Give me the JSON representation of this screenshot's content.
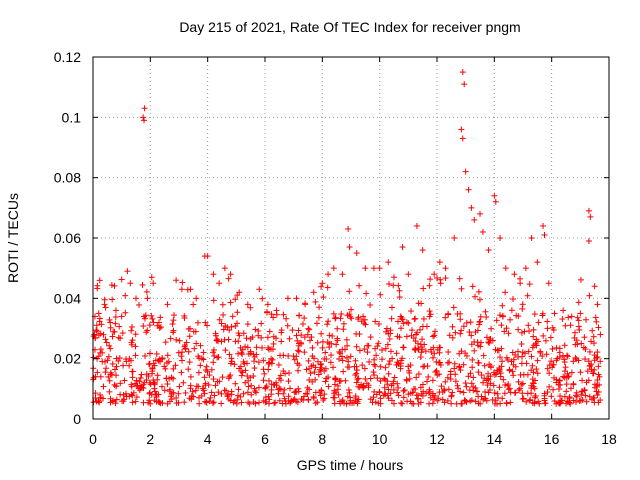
{
  "chart_data": {
    "type": "scatter",
    "title": "Day 215 of 2021, Rate Of TEC Index for receiver pngm",
    "xlabel": "GPS time / hours",
    "ylabel": "ROTI / TECUs",
    "xlim": [
      0,
      18
    ],
    "ylim": [
      0,
      0.12
    ],
    "xticks": [
      0,
      2,
      4,
      6,
      8,
      10,
      12,
      14,
      16,
      18
    ],
    "xtick_labels": [
      "0",
      "2",
      "4",
      "6",
      "8",
      "10",
      "12",
      "14",
      "16",
      "18"
    ],
    "yticks": [
      0,
      0.02,
      0.04,
      0.06,
      0.08,
      0.1,
      0.12
    ],
    "ytick_labels": [
      "0",
      "0.02",
      "0.04",
      "0.06",
      "0.08",
      "0.1",
      "0.12"
    ],
    "grid": true,
    "marker": "+",
    "color": "#ff0000",
    "series": [
      {
        "name": "ROTI",
        "x_range": [
          0,
          17.7
        ],
        "typical_band": [
          0.005,
          0.035
        ],
        "points": [
          [
            0.05,
            0.028
          ],
          [
            0.2,
            0.035
          ],
          [
            0.4,
            0.038
          ],
          [
            0.6,
            0.032
          ],
          [
            0.8,
            0.036
          ],
          [
            1.0,
            0.034
          ],
          [
            1.2,
            0.049
          ],
          [
            1.3,
            0.045
          ],
          [
            1.5,
            0.04
          ],
          [
            1.75,
            0.1
          ],
          [
            1.8,
            0.103
          ],
          [
            1.78,
            0.099
          ],
          [
            1.9,
            0.04
          ],
          [
            2.05,
            0.047
          ],
          [
            2.1,
            0.045
          ],
          [
            2.3,
            0.032
          ],
          [
            2.6,
            0.038
          ],
          [
            2.9,
            0.046
          ],
          [
            3.1,
            0.043
          ],
          [
            3.4,
            0.043
          ],
          [
            3.6,
            0.04
          ],
          [
            3.9,
            0.054
          ],
          [
            4.0,
            0.054
          ],
          [
            4.2,
            0.048
          ],
          [
            4.4,
            0.045
          ],
          [
            4.6,
            0.05
          ],
          [
            4.8,
            0.048
          ],
          [
            5.1,
            0.042
          ],
          [
            5.4,
            0.038
          ],
          [
            5.8,
            0.043
          ],
          [
            6.1,
            0.038
          ],
          [
            6.4,
            0.036
          ],
          [
            6.8,
            0.04
          ],
          [
            7.1,
            0.04
          ],
          [
            7.4,
            0.038
          ],
          [
            7.7,
            0.042
          ],
          [
            8.0,
            0.045
          ],
          [
            8.2,
            0.048
          ],
          [
            8.4,
            0.05
          ],
          [
            8.7,
            0.048
          ],
          [
            8.9,
            0.063
          ],
          [
            8.95,
            0.057
          ],
          [
            9.2,
            0.055
          ],
          [
            9.5,
            0.05
          ],
          [
            9.8,
            0.05
          ],
          [
            10.0,
            0.05
          ],
          [
            10.3,
            0.052
          ],
          [
            10.5,
            0.047
          ],
          [
            10.8,
            0.057
          ],
          [
            11.0,
            0.048
          ],
          [
            11.3,
            0.064
          ],
          [
            11.5,
            0.056
          ],
          [
            11.9,
            0.048
          ],
          [
            12.1,
            0.052
          ],
          [
            12.3,
            0.05
          ],
          [
            12.6,
            0.06
          ],
          [
            12.9,
            0.115
          ],
          [
            12.95,
            0.111
          ],
          [
            12.85,
            0.096
          ],
          [
            12.9,
            0.093
          ],
          [
            13.0,
            0.082
          ],
          [
            13.1,
            0.076
          ],
          [
            13.2,
            0.07
          ],
          [
            13.3,
            0.066
          ],
          [
            13.5,
            0.068
          ],
          [
            13.6,
            0.062
          ],
          [
            13.8,
            0.056
          ],
          [
            14.0,
            0.074
          ],
          [
            14.05,
            0.072
          ],
          [
            14.2,
            0.06
          ],
          [
            14.4,
            0.05
          ],
          [
            14.7,
            0.048
          ],
          [
            14.9,
            0.045
          ],
          [
            15.1,
            0.05
          ],
          [
            15.3,
            0.06
          ],
          [
            15.5,
            0.052
          ],
          [
            15.7,
            0.064
          ],
          [
            15.75,
            0.061
          ],
          [
            15.9,
            0.045
          ],
          [
            16.1,
            0.035
          ],
          [
            16.4,
            0.036
          ],
          [
            16.7,
            0.034
          ],
          [
            17.0,
            0.035
          ],
          [
            17.3,
            0.069
          ],
          [
            17.35,
            0.067
          ],
          [
            17.3,
            0.059
          ],
          [
            17.5,
            0.044
          ],
          [
            17.6,
            0.038
          ],
          [
            17.7,
            0.028
          ]
        ]
      }
    ]
  }
}
